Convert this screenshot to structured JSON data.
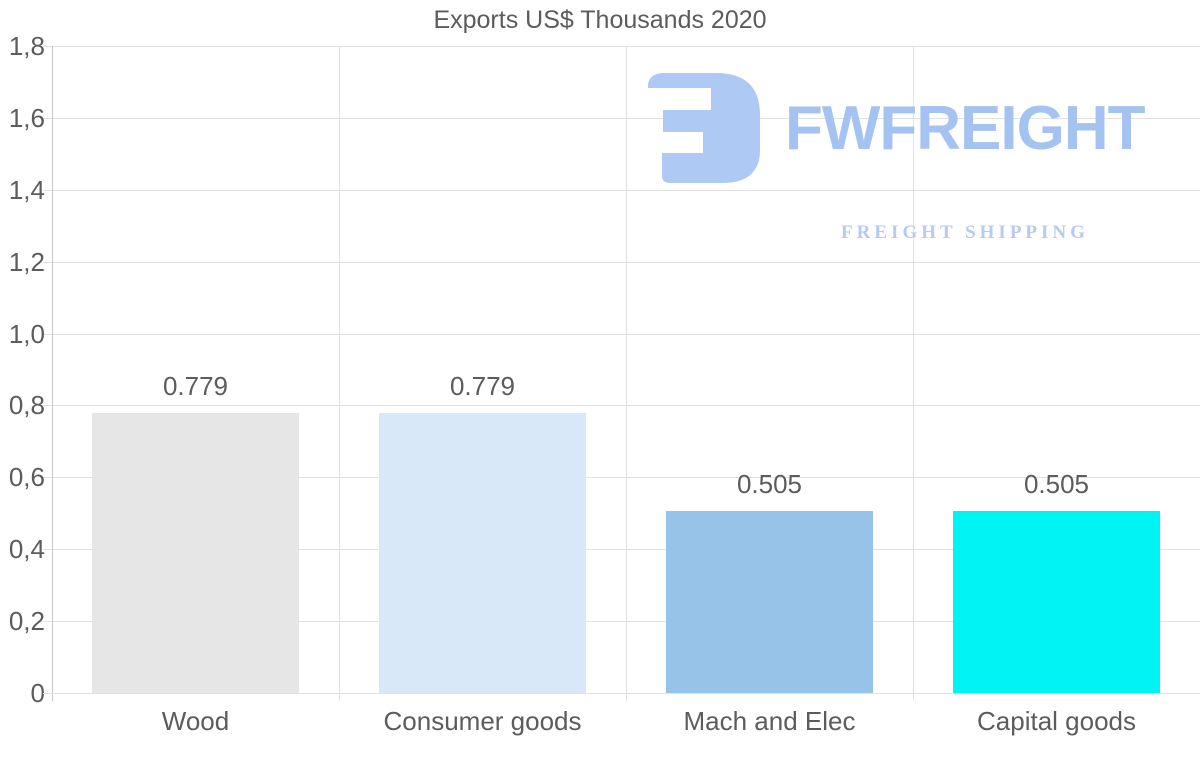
{
  "chart_data": {
    "type": "bar",
    "title": "Exports US$ Thousands 2020",
    "categories": [
      "Wood",
      "Consumer goods",
      "Mach and Elec",
      "Capital goods"
    ],
    "values": [
      0.779,
      0.779,
      0.505,
      0.505
    ],
    "bar_labels": [
      "0.779",
      "0.779",
      "0.505",
      "0.505"
    ],
    "bar_colors": [
      "#e6e6e6",
      "#d9e8f8",
      "#98c3e8",
      "#00f4f4"
    ],
    "xlabel": "",
    "ylabel": "",
    "ylim": [
      0,
      1.8
    ],
    "ytick_values": [
      0,
      0.2,
      0.4,
      0.6,
      0.8,
      1.0,
      1.2,
      1.4,
      1.6,
      1.8
    ],
    "ytick_labels": [
      "0",
      "0,2",
      "0,4",
      "0,6",
      "0,8",
      "1,0",
      "1,2",
      "1,4",
      "1,6",
      "1,8"
    ],
    "grid": true,
    "legend_position": "none",
    "bar_width_fraction": 0.72
  },
  "watermark": {
    "brand": "FWFREIGHT",
    "tagline": "FREIGHT SHIPPING"
  },
  "colors": {
    "grid": "#e2e2e2",
    "axis": "#c9c9c9",
    "text": "#5c5c5c",
    "logo": "#a5c3f1",
    "logo_icon": "#adc9f4",
    "logo_tagline": "#b6cbf1"
  }
}
